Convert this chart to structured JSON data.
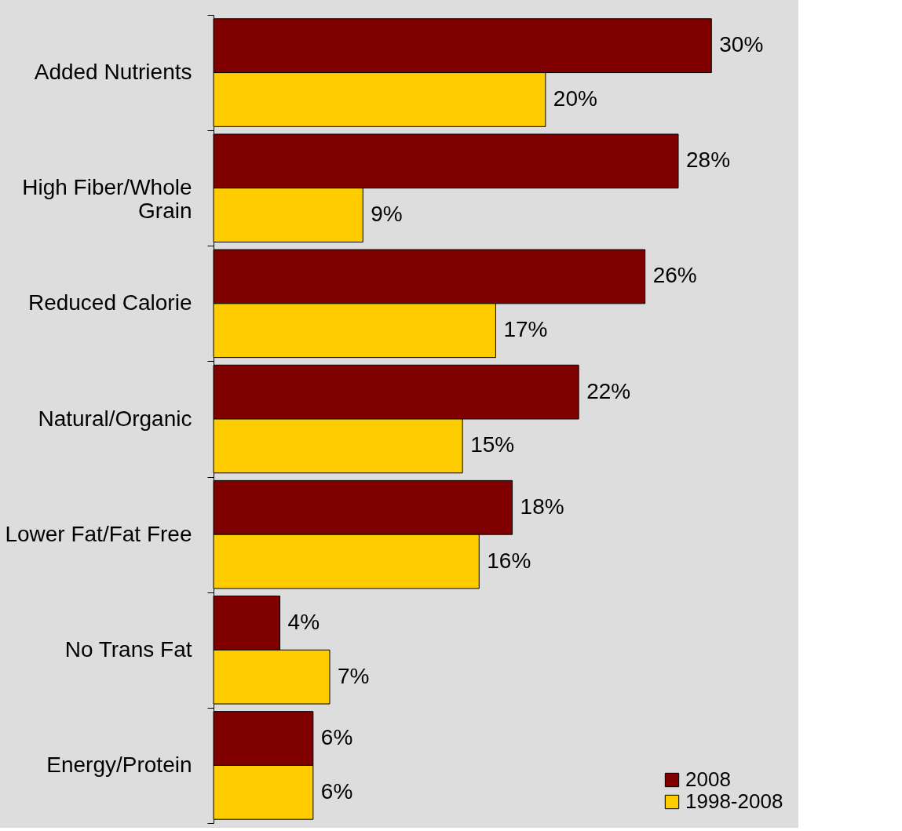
{
  "chart_data": {
    "type": "bar",
    "orientation": "horizontal",
    "categories": [
      "Added Nutrients",
      "High Fiber/Whole Grain",
      "Reduced Calorie",
      "Natural/Organic",
      "Lower Fat/Fat Free",
      "No Trans Fat",
      "Energy/Protein"
    ],
    "series": [
      {
        "name": "2008",
        "color": "#800000",
        "values": [
          30,
          28,
          26,
          22,
          18,
          4,
          6
        ],
        "value_labels": [
          "30%",
          "28%",
          "26%",
          "22%",
          "18%",
          "4%",
          "6%"
        ]
      },
      {
        "name": "1998-2008",
        "color": "#ffcc00",
        "values": [
          20,
          9,
          17,
          15,
          16,
          7,
          6
        ],
        "value_labels": [
          "20%",
          "9%",
          "17%",
          "15%",
          "16%",
          "7%",
          "6%"
        ]
      }
    ],
    "xlim": [
      0,
      35
    ],
    "tick_labels": "y",
    "legend": "bottom right"
  }
}
